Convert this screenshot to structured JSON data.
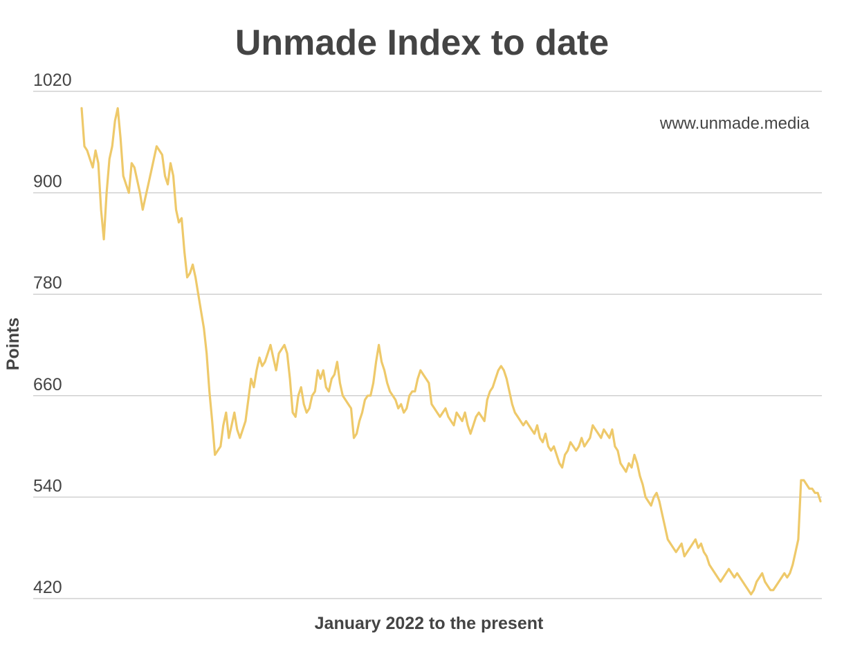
{
  "chart_data": {
    "type": "line",
    "title": "Unmade Index to date",
    "xlabel": "January 2022 to the present",
    "ylabel": "Points",
    "annotation": "www.unmade.media",
    "ylim": [
      420,
      1020
    ],
    "yticks": [
      "1020",
      "900",
      "780",
      "660",
      "540",
      "420"
    ],
    "grid": true,
    "colors": {
      "line": "#eec96a",
      "text": "#444444",
      "grid": "#d0d0d0"
    },
    "series": [
      {
        "values": [
          1000,
          955,
          950,
          940,
          930,
          950,
          935,
          880,
          845,
          900,
          940,
          955,
          985,
          1000,
          965,
          920,
          910,
          900,
          935,
          930,
          915,
          900,
          880,
          895,
          910,
          925,
          940,
          955,
          950,
          945,
          920,
          910,
          935,
          920,
          880,
          865,
          870,
          830,
          800,
          805,
          815,
          800,
          780,
          760,
          740,
          710,
          665,
          630,
          590,
          595,
          600,
          625,
          640,
          610,
          625,
          640,
          620,
          610,
          620,
          630,
          655,
          680,
          670,
          690,
          705,
          695,
          700,
          710,
          720,
          705,
          690,
          710,
          715,
          720,
          710,
          680,
          640,
          635,
          660,
          670,
          650,
          640,
          645,
          660,
          665,
          690,
          680,
          690,
          670,
          665,
          680,
          685,
          700,
          675,
          660,
          655,
          650,
          645,
          610,
          615,
          630,
          640,
          655,
          660,
          660,
          675,
          700,
          720,
          700,
          690,
          675,
          665,
          660,
          655,
          645,
          650,
          640,
          645,
          660,
          665,
          665,
          680,
          690,
          685,
          680,
          675,
          650,
          645,
          640,
          635,
          640,
          645,
          635,
          630,
          625,
          640,
          635,
          630,
          640,
          625,
          615,
          625,
          635,
          640,
          635,
          630,
          655,
          665,
          670,
          680,
          690,
          695,
          690,
          680,
          665,
          650,
          640,
          635,
          630,
          625,
          630,
          625,
          620,
          615,
          625,
          610,
          605,
          615,
          600,
          595,
          600,
          590,
          580,
          575,
          590,
          595,
          605,
          600,
          595,
          600,
          610,
          600,
          605,
          610,
          625,
          620,
          615,
          610,
          620,
          615,
          610,
          620,
          600,
          595,
          580,
          575,
          570,
          580,
          575,
          590,
          580,
          565,
          555,
          540,
          535,
          530,
          540,
          545,
          535,
          520,
          505,
          490,
          485,
          480,
          475,
          480,
          485,
          470,
          475,
          480,
          485,
          490,
          480,
          485,
          475,
          470,
          460,
          455,
          450,
          445,
          440,
          445,
          450,
          455,
          450,
          445,
          450,
          445,
          440,
          435,
          430,
          425,
          430,
          440,
          445,
          450,
          440,
          435,
          430,
          430,
          435,
          440,
          445,
          450,
          445,
          450,
          460,
          475,
          490,
          560,
          560,
          555,
          550,
          550,
          545,
          545,
          535
        ]
      }
    ]
  }
}
